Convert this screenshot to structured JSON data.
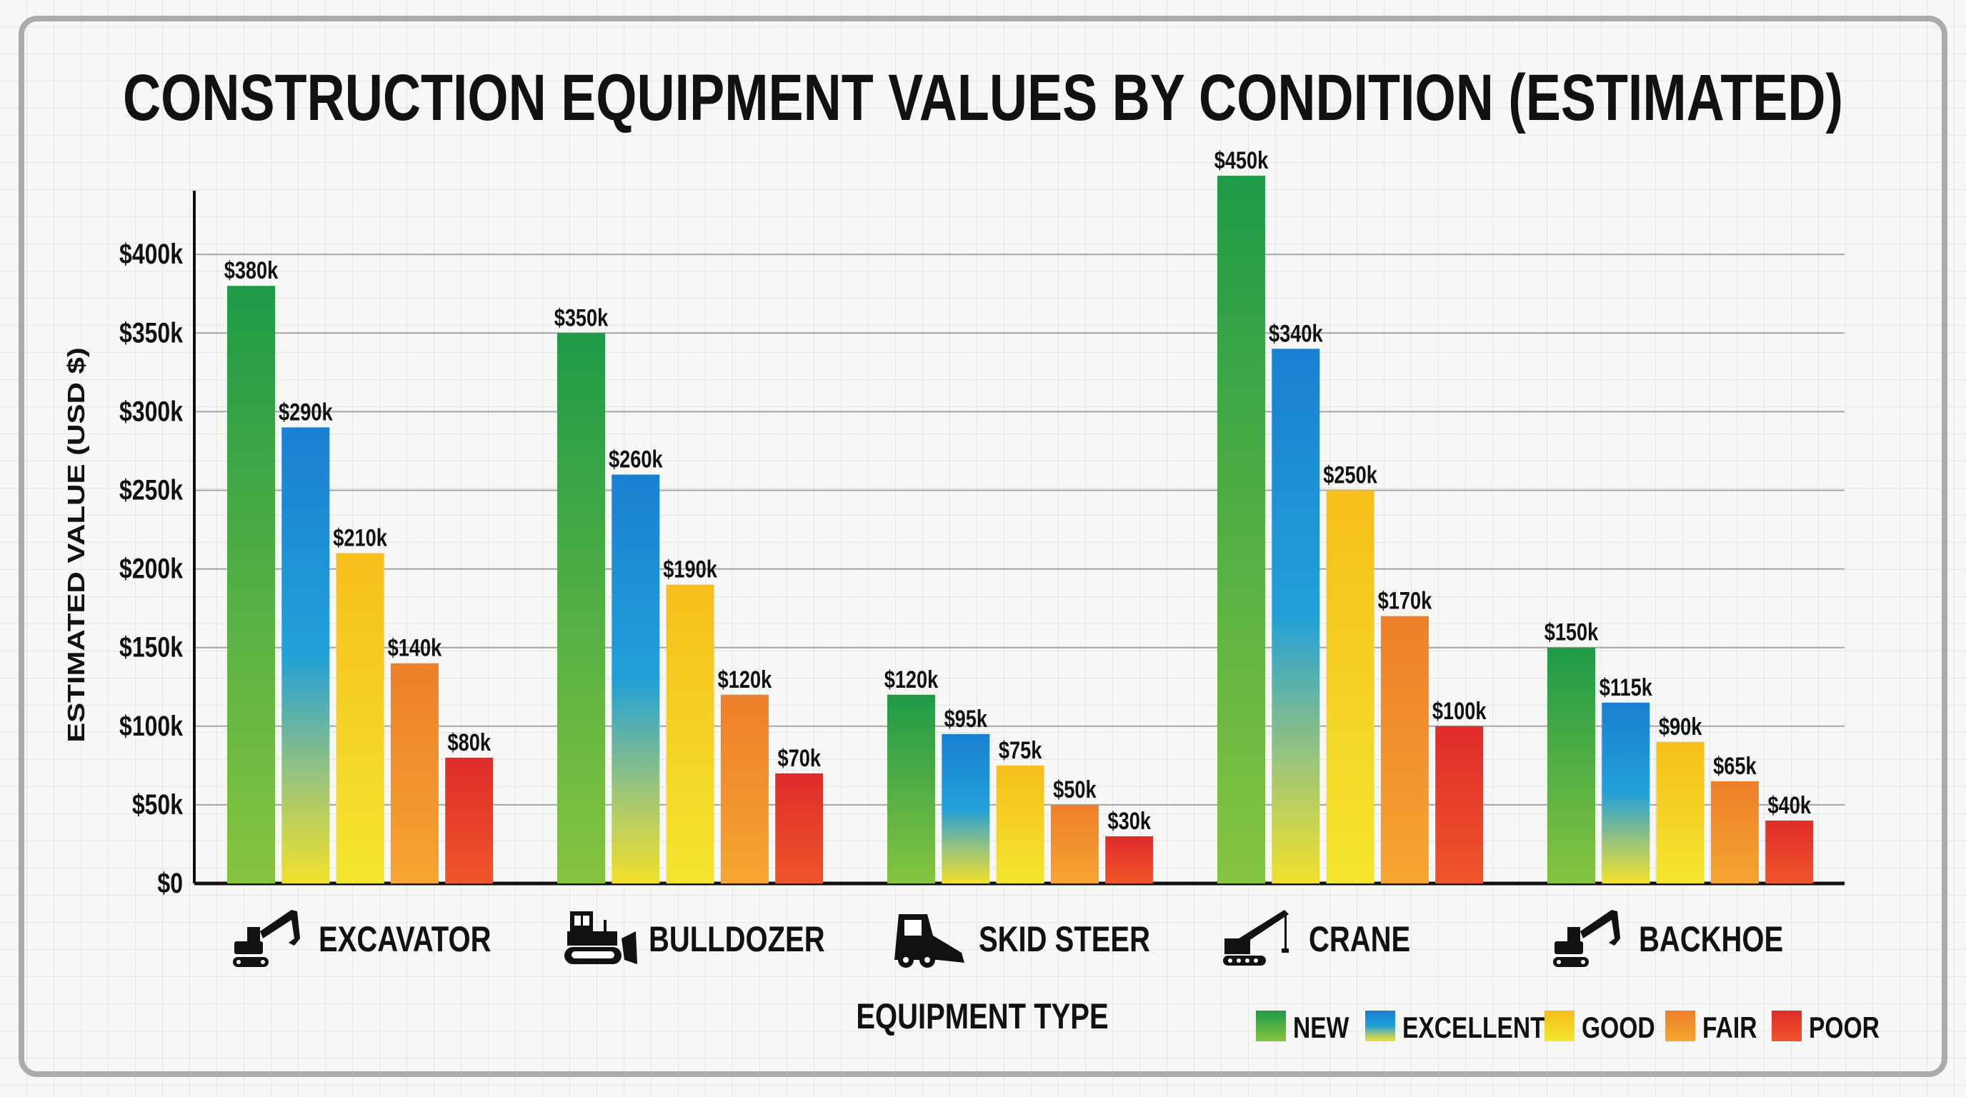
{
  "chart_data": {
    "type": "bar",
    "title": "CONSTRUCTION EQUIPMENT VALUES BY CONDITION (ESTIMATED)",
    "xlabel": "EQUIPMENT TYPE",
    "ylabel": "ESTIMATED VALUE (USD $)",
    "ylim": [
      0,
      450000
    ],
    "yticks": [
      0,
      50000,
      100000,
      150000,
      200000,
      250000,
      300000,
      350000,
      400000
    ],
    "ytick_labels": [
      "$0",
      "$50k",
      "$100k",
      "$150k",
      "$200k",
      "$250k",
      "$300k",
      "$350k",
      "$400k"
    ],
    "grid": true,
    "legend_position": "bottom-right",
    "categories": [
      "EXCAVATOR",
      "BULLDOZER",
      "SKID STEER",
      "CRANE",
      "BACKHOE"
    ],
    "category_icons": [
      "excavator-icon",
      "bulldozer-icon",
      "skid-steer-icon",
      "crane-icon",
      "backhoe-icon"
    ],
    "series": [
      {
        "name": "NEW",
        "color": "#1f9a48",
        "values": [
          380000,
          350000,
          120000,
          450000,
          150000
        ],
        "labels": [
          "$380k",
          "$350k",
          "$120k",
          "$450k",
          "$150k"
        ]
      },
      {
        "name": "EXCELLENT",
        "color": "#1a80d2",
        "values": [
          290000,
          260000,
          95000,
          340000,
          115000
        ],
        "labels": [
          "$290k",
          "$260k",
          "$95k",
          "$340k",
          "$115k"
        ]
      },
      {
        "name": "GOOD",
        "color": "#f8c81e",
        "values": [
          210000,
          190000,
          75000,
          250000,
          90000
        ],
        "labels": [
          "$210k",
          "$190k",
          "$75k",
          "$250k",
          "$90k"
        ]
      },
      {
        "name": "FAIR",
        "color": "#f0852a",
        "values": [
          140000,
          120000,
          50000,
          170000,
          65000
        ],
        "labels": [
          "$140k",
          "$120k",
          "$50k",
          "$170k",
          "$65k"
        ]
      },
      {
        "name": "POOR",
        "color": "#e2302a",
        "values": [
          80000,
          70000,
          30000,
          100000,
          40000
        ],
        "labels": [
          "$80k",
          "$70k",
          "$30k",
          "$100k",
          "$40k"
        ]
      }
    ]
  }
}
